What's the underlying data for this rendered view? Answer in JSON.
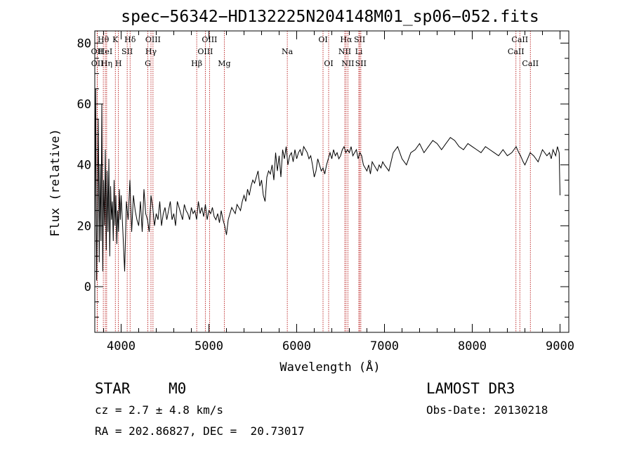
{
  "chart_data": {
    "type": "line",
    "title": "spec−56342−HD132225N204148M01_sp06−052.fits",
    "xlabel": "Wavelength (Å)",
    "ylabel": "Flux (relative)",
    "xlim": [
      3700,
      9100
    ],
    "ylim": [
      -15,
      84
    ],
    "x_ticks": [
      4000,
      5000,
      6000,
      7000,
      8000,
      9000
    ],
    "y_ticks": [
      0,
      20,
      40,
      60,
      80
    ],
    "series": [
      {
        "name": "flux",
        "x": [
          3700,
          3710,
          3720,
          3730,
          3740,
          3750,
          3760,
          3770,
          3780,
          3790,
          3800,
          3810,
          3820,
          3830,
          3840,
          3850,
          3860,
          3870,
          3880,
          3890,
          3900,
          3910,
          3920,
          3930,
          3940,
          3950,
          3960,
          3970,
          3980,
          3990,
          4000,
          4020,
          4040,
          4060,
          4080,
          4100,
          4120,
          4140,
          4160,
          4180,
          4200,
          4220,
          4240,
          4260,
          4280,
          4300,
          4320,
          4340,
          4360,
          4380,
          4400,
          4420,
          4440,
          4460,
          4480,
          4500,
          4520,
          4540,
          4560,
          4580,
          4600,
          4620,
          4640,
          4660,
          4680,
          4700,
          4720,
          4740,
          4760,
          4780,
          4800,
          4820,
          4840,
          4860,
          4880,
          4900,
          4920,
          4940,
          4960,
          4980,
          5000,
          5020,
          5040,
          5060,
          5080,
          5100,
          5120,
          5140,
          5160,
          5180,
          5200,
          5220,
          5240,
          5260,
          5280,
          5300,
          5320,
          5340,
          5360,
          5380,
          5400,
          5420,
          5440,
          5460,
          5480,
          5500,
          5520,
          5540,
          5560,
          5580,
          5600,
          5620,
          5640,
          5660,
          5680,
          5700,
          5720,
          5740,
          5760,
          5780,
          5800,
          5820,
          5840,
          5860,
          5880,
          5900,
          5920,
          5940,
          5960,
          5980,
          6000,
          6020,
          6040,
          6060,
          6080,
          6100,
          6120,
          6140,
          6160,
          6180,
          6200,
          6220,
          6240,
          6260,
          6280,
          6300,
          6320,
          6340,
          6360,
          6380,
          6400,
          6420,
          6440,
          6460,
          6480,
          6500,
          6520,
          6540,
          6560,
          6580,
          6600,
          6620,
          6640,
          6660,
          6680,
          6700,
          6720,
          6740,
          6760,
          6780,
          6800,
          6820,
          6840,
          6860,
          6880,
          6900,
          6920,
          6940,
          6960,
          6980,
          7000,
          7050,
          7100,
          7150,
          7200,
          7250,
          7300,
          7350,
          7400,
          7450,
          7500,
          7550,
          7600,
          7650,
          7700,
          7750,
          7800,
          7850,
          7900,
          7950,
          8000,
          8050,
          8100,
          8150,
          8200,
          8250,
          8300,
          8350,
          8400,
          8450,
          8500,
          8530,
          8550,
          8580,
          8600,
          8630,
          8660,
          8700,
          8750,
          8800,
          8850,
          8880,
          8900,
          8920,
          8950,
          8970,
          8990,
          9000
        ],
        "values": [
          10,
          65,
          2,
          25,
          55,
          8,
          40,
          15,
          60,
          5,
          35,
          20,
          45,
          12,
          38,
          18,
          42,
          10,
          33,
          22,
          28,
          15,
          35,
          20,
          30,
          14,
          25,
          18,
          32,
          22,
          30,
          18,
          5,
          28,
          22,
          35,
          18,
          30,
          25,
          22,
          20,
          28,
          18,
          32,
          24,
          22,
          18,
          30,
          26,
          20,
          24,
          22,
          28,
          20,
          24,
          26,
          22,
          25,
          28,
          22,
          24,
          20,
          28,
          26,
          24,
          22,
          27,
          25,
          24,
          22,
          26,
          24,
          25,
          22,
          28,
          24,
          26,
          23,
          27,
          22,
          25,
          24,
          26,
          23,
          22,
          24,
          21,
          25,
          22,
          20,
          17,
          22,
          24,
          26,
          25,
          24,
          27,
          26,
          25,
          28,
          30,
          28,
          32,
          30,
          33,
          35,
          34,
          36,
          38,
          33,
          35,
          30,
          28,
          36,
          38,
          37,
          40,
          35,
          44,
          38,
          43,
          36,
          45,
          42,
          46,
          40,
          43,
          44,
          41,
          45,
          42,
          44,
          45,
          43,
          46,
          45,
          44,
          42,
          43,
          40,
          36,
          38,
          42,
          40,
          38,
          39,
          37,
          40,
          42,
          44,
          42,
          45,
          43,
          44,
          42,
          43,
          45,
          46,
          44,
          45,
          44,
          46,
          43,
          44,
          45,
          42,
          44,
          43,
          40,
          39,
          38,
          40,
          37,
          41,
          40,
          39,
          38,
          40,
          39,
          41,
          40,
          38,
          44,
          46,
          42,
          40,
          44,
          45,
          47,
          44,
          46,
          48,
          47,
          45,
          47,
          49,
          48,
          46,
          45,
          47,
          46,
          45,
          44,
          46,
          45,
          44,
          43,
          45,
          43,
          44,
          46,
          44,
          43,
          41,
          40,
          42,
          44,
          43,
          41,
          45,
          43,
          44,
          42,
          45,
          43,
          46,
          44,
          30
        ]
      }
    ],
    "spectral_lines": [
      {
        "label": "Hθ",
        "wave": 3797,
        "row": 0
      },
      {
        "label": "OII",
        "wave": 3727,
        "row": 1
      },
      {
        "label": "OII",
        "wave": 3729,
        "row": 2
      },
      {
        "label": "HeI",
        "wave": 3820,
        "row": 1
      },
      {
        "label": "Hη",
        "wave": 3835,
        "row": 2
      },
      {
        "label": "K",
        "wave": 3934,
        "row": 0
      },
      {
        "label": "SII",
        "wave": 4069,
        "row": 1
      },
      {
        "label": "H",
        "wave": 3969,
        "row": 2
      },
      {
        "label": "Hδ",
        "wave": 4102,
        "row": 0
      },
      {
        "label": "OIII",
        "wave": 4363,
        "row": 0
      },
      {
        "label": "Hγ",
        "wave": 4340,
        "row": 1
      },
      {
        "label": "G",
        "wave": 4304,
        "row": 2
      },
      {
        "label": "Hβ",
        "wave": 4861,
        "row": 2
      },
      {
        "label": "OIII",
        "wave": 5007,
        "row": 0
      },
      {
        "label": "OIII",
        "wave": 4959,
        "row": 1
      },
      {
        "label": "Mg",
        "wave": 5175,
        "row": 2
      },
      {
        "label": "Na",
        "wave": 5893,
        "row": 1
      },
      {
        "label": "OI",
        "wave": 6300,
        "row": 0
      },
      {
        "label": "OI",
        "wave": 6364,
        "row": 2
      },
      {
        "label": "Hα",
        "wave": 6563,
        "row": 0
      },
      {
        "label": "NII",
        "wave": 6548,
        "row": 1
      },
      {
        "label": "NII",
        "wave": 6583,
        "row": 2
      },
      {
        "label": "SII",
        "wave": 6717,
        "row": 0
      },
      {
        "label": "Li",
        "wave": 6708,
        "row": 1
      },
      {
        "label": "SII",
        "wave": 6731,
        "row": 2
      },
      {
        "label": "CaII",
        "wave": 8542,
        "row": 0
      },
      {
        "label": "CaII",
        "wave": 8498,
        "row": 1
      },
      {
        "label": "CaII",
        "wave": 8662,
        "row": 2
      }
    ],
    "colors": {
      "spectrum": "#000000",
      "lines": "#b00000"
    }
  },
  "info": {
    "class": "STAR",
    "subclass": "M0",
    "survey": "LAMOST DR3",
    "cz": "cz = 2.7 ± 4.8 km/s",
    "obs_date": "Obs-Date: 20130218",
    "coords": "RA = 202.86827, DEC =  20.73017"
  }
}
